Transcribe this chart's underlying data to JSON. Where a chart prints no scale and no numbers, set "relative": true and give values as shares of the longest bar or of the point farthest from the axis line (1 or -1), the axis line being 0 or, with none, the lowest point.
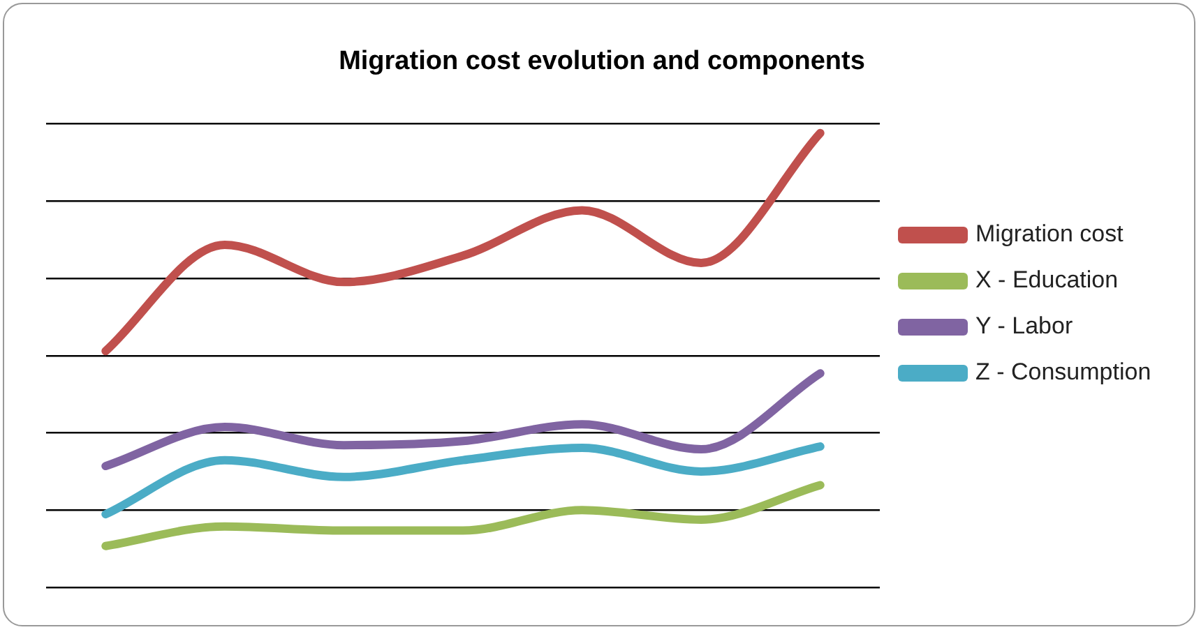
{
  "chart_data": {
    "type": "line",
    "title": "Migration cost evolution and components",
    "relative": true,
    "categories": [
      null,
      null,
      null,
      null,
      null,
      null,
      null
    ],
    "series": [
      {
        "name": "Migration cost",
        "color": "#c0504d",
        "values": [
          0.52,
          0.754,
          0.672,
          0.73,
          0.83,
          0.714,
          1
        ]
      },
      {
        "name": "X - Education",
        "color": "#9bbb59",
        "values": [
          0.091,
          0.134,
          0.125,
          0.125,
          0.17,
          0.149,
          0.225
        ]
      },
      {
        "name": "Y - Labor",
        "color": "#8064a2",
        "values": [
          0.267,
          0.353,
          0.313,
          0.322,
          0.359,
          0.304,
          0.471
        ]
      },
      {
        "name": "Z - Consumption",
        "color": "#4bacc6",
        "values": [
          0.161,
          0.28,
          0.243,
          0.28,
          0.307,
          0.255,
          0.31
        ]
      }
    ],
    "grid": "y",
    "legend": "right",
    "marker": "none",
    "line_style": "solid"
  }
}
